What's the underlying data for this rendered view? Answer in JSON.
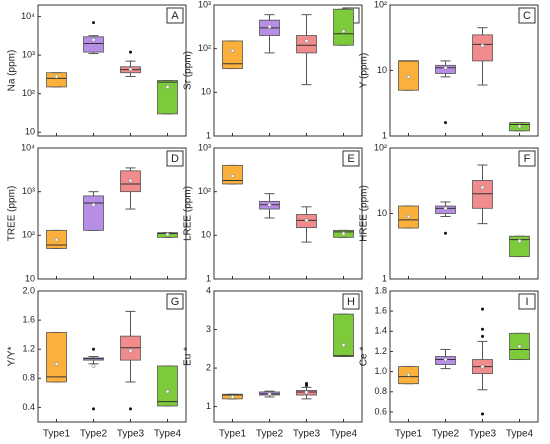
{
  "chart_data": [
    {
      "type": "box",
      "panel": "A",
      "ylabel": "Na (ppm)",
      "log": true,
      "ylim": [
        8,
        20000
      ],
      "yticks": [
        {
          "value": 10,
          "label": "10"
        },
        {
          "value": 100,
          "label": "10²"
        },
        {
          "value": 1000,
          "label": "10³"
        },
        {
          "value": 10000,
          "label": "10⁴"
        }
      ],
      "colors": [
        "#fbb03b",
        "#b68ee6",
        "#f08c8c",
        "#7dcb3a"
      ],
      "boxes": [
        {
          "min": 150,
          "q1": 150,
          "median": 250,
          "q3": 350,
          "max": 350,
          "mean": 280,
          "outliers": []
        },
        {
          "min": 1100,
          "q1": 1200,
          "median": 2000,
          "q3": 3000,
          "max": 3200,
          "mean": 2500,
          "outliers": [
            7000
          ]
        },
        {
          "min": 280,
          "q1": 350,
          "median": 420,
          "q3": 500,
          "max": 700,
          "mean": 430,
          "outliers": [
            1200
          ]
        },
        {
          "min": 30,
          "q1": 30,
          "median": 200,
          "q3": 220,
          "max": 220,
          "mean": 150,
          "outliers": []
        }
      ]
    },
    {
      "type": "box",
      "panel": "B",
      "ylabel": "Sr (ppm)",
      "log": true,
      "ylim": [
        1,
        1000
      ],
      "yticks": [
        {
          "value": 1,
          "label": "1"
        },
        {
          "value": 10,
          "label": "10"
        },
        {
          "value": 100,
          "label": "10²"
        },
        {
          "value": 1000,
          "label": "10³"
        }
      ],
      "colors": [
        "#fbb03b",
        "#b68ee6",
        "#f08c8c",
        "#7dcb3a"
      ],
      "boxes": [
        {
          "min": 35,
          "q1": 35,
          "median": 45,
          "q3": 150,
          "max": 150,
          "mean": 90,
          "outliers": []
        },
        {
          "min": 80,
          "q1": 200,
          "median": 300,
          "q3": 450,
          "max": 600,
          "mean": 320,
          "outliers": []
        },
        {
          "min": 15,
          "q1": 80,
          "median": 120,
          "q3": 200,
          "max": 600,
          "mean": 150,
          "outliers": []
        },
        {
          "min": 120,
          "q1": 120,
          "median": 220,
          "q3": 800,
          "max": 800,
          "mean": 250,
          "outliers": []
        }
      ]
    },
    {
      "type": "box",
      "panel": "C",
      "ylabel": "Y (ppm)",
      "log": true,
      "ylim": [
        1,
        100
      ],
      "yticks": [
        {
          "value": 1,
          "label": "1"
        },
        {
          "value": 10,
          "label": "10"
        },
        {
          "value": 100,
          "label": "10²"
        }
      ],
      "colors": [
        "#fbb03b",
        "#b68ee6",
        "#f08c8c",
        "#7dcb3a"
      ],
      "boxes": [
        {
          "min": 5,
          "q1": 5,
          "median": 14,
          "q3": 14,
          "max": 14,
          "mean": 8,
          "outliers": []
        },
        {
          "min": 8,
          "q1": 9,
          "median": 11,
          "q3": 12,
          "max": 14,
          "mean": 11,
          "outliers": [
            1.6
          ]
        },
        {
          "min": 6,
          "q1": 14,
          "median": 25,
          "q3": 35,
          "max": 45,
          "mean": 24,
          "outliers": []
        },
        {
          "min": 1.2,
          "q1": 1.2,
          "median": 1.5,
          "q3": 1.6,
          "max": 1.6,
          "mean": 1.4,
          "outliers": []
        }
      ]
    },
    {
      "type": "box",
      "panel": "D",
      "ylabel": "TREE (ppm)",
      "log": true,
      "ylim": [
        10,
        10000
      ],
      "yticks": [
        {
          "value": 10,
          "label": "10"
        },
        {
          "value": 100,
          "label": "10²"
        },
        {
          "value": 1000,
          "label": "10³"
        },
        {
          "value": 10000,
          "label": "10⁴"
        }
      ],
      "colors": [
        "#fbb03b",
        "#b68ee6",
        "#f08c8c",
        "#7dcb3a"
      ],
      "boxes": [
        {
          "min": 50,
          "q1": 50,
          "median": 60,
          "q3": 130,
          "max": 130,
          "mean": 80,
          "outliers": []
        },
        {
          "min": 130,
          "q1": 130,
          "median": 550,
          "q3": 800,
          "max": 1000,
          "mean": 500,
          "outliers": []
        },
        {
          "min": 400,
          "q1": 1000,
          "median": 1500,
          "q3": 3000,
          "max": 3500,
          "mean": 1800,
          "outliers": []
        },
        {
          "min": 90,
          "q1": 90,
          "median": 110,
          "q3": 115,
          "max": 115,
          "mean": 105,
          "outliers": []
        }
      ]
    },
    {
      "type": "box",
      "panel": "E",
      "ylabel": "LREE (ppm)",
      "log": true,
      "ylim": [
        1,
        1000
      ],
      "yticks": [
        {
          "value": 1,
          "label": "1"
        },
        {
          "value": 10,
          "label": "10"
        },
        {
          "value": 100,
          "label": "10²"
        },
        {
          "value": 1000,
          "label": "10³"
        }
      ],
      "colors": [
        "#fbb03b",
        "#b68ee6",
        "#f08c8c",
        "#7dcb3a"
      ],
      "boxes": [
        {
          "min": 150,
          "q1": 150,
          "median": 180,
          "q3": 400,
          "max": 400,
          "mean": 230,
          "outliers": []
        },
        {
          "min": 25,
          "q1": 40,
          "median": 50,
          "q3": 60,
          "max": 90,
          "mean": 50,
          "outliers": []
        },
        {
          "min": 7,
          "q1": 15,
          "median": 22,
          "q3": 30,
          "max": 45,
          "mean": 22,
          "outliers": []
        },
        {
          "min": 9,
          "q1": 9,
          "median": 12,
          "q3": 13,
          "max": 13,
          "mean": 11,
          "outliers": []
        }
      ]
    },
    {
      "type": "box",
      "panel": "F",
      "ylabel": "HREE (ppm)",
      "log": true,
      "ylim": [
        1,
        100
      ],
      "yticks": [
        {
          "value": 1,
          "label": "1"
        },
        {
          "value": 10,
          "label": "10"
        },
        {
          "value": 100,
          "label": "10²"
        }
      ],
      "colors": [
        "#fbb03b",
        "#b68ee6",
        "#f08c8c",
        "#7dcb3a"
      ],
      "boxes": [
        {
          "min": 6,
          "q1": 6,
          "median": 8,
          "q3": 13,
          "max": 13,
          "mean": 9,
          "outliers": []
        },
        {
          "min": 9,
          "q1": 10,
          "median": 12,
          "q3": 13,
          "max": 15,
          "mean": 12,
          "outliers": [
            5
          ]
        },
        {
          "min": 7,
          "q1": 12,
          "median": 20,
          "q3": 32,
          "max": 55,
          "mean": 25,
          "outliers": []
        },
        {
          "min": 2.2,
          "q1": 2.2,
          "median": 4,
          "q3": 4.5,
          "max": 4.5,
          "mean": 3.8,
          "outliers": []
        }
      ]
    },
    {
      "type": "box",
      "panel": "G",
      "ylabel": "Y/Y*",
      "log": false,
      "ylim": [
        0.2,
        2.0
      ],
      "yticks": [
        0.4,
        0.8,
        1.2,
        1.6,
        {
          "value": 2,
          "label": "2.0"
        }
      ],
      "colors": [
        "#fbb03b",
        "#b68ee6",
        "#f08c8c",
        "#7dcb3a"
      ],
      "categories": [
        "Type1",
        "Type2",
        "Type3",
        "Type4"
      ],
      "boxes": [
        {
          "min": 0.75,
          "q1": 0.75,
          "median": 0.82,
          "q3": 1.43,
          "max": 1.43,
          "mean": 1.0,
          "outliers": []
        },
        {
          "min": 1.0,
          "q1": 1.05,
          "median": 1.07,
          "q3": 1.08,
          "max": 1.1,
          "mean": 0.97,
          "outliers": [
            0.38,
            1.2
          ]
        },
        {
          "min": 0.75,
          "q1": 1.05,
          "median": 1.22,
          "q3": 1.38,
          "max": 1.72,
          "mean": 1.18,
          "outliers": [
            0.38
          ]
        },
        {
          "min": 0.42,
          "q1": 0.42,
          "median": 0.48,
          "q3": 0.97,
          "max": 0.97,
          "mean": 0.62,
          "outliers": []
        }
      ]
    },
    {
      "type": "box",
      "panel": "H",
      "ylabel": "Eu *",
      "log": false,
      "ylim": [
        0.6,
        4
      ],
      "yticks": [
        1,
        2,
        3,
        4
      ],
      "colors": [
        "#fbb03b",
        "#b68ee6",
        "#f08c8c",
        "#7dcb3a"
      ],
      "categories": [
        "Type1",
        "Type2",
        "Type3",
        "Type4"
      ],
      "boxes": [
        {
          "min": 1.2,
          "q1": 1.2,
          "median": 1.3,
          "q3": 1.32,
          "max": 1.32,
          "mean": 1.25,
          "outliers": []
        },
        {
          "min": 1.25,
          "q1": 1.3,
          "median": 1.33,
          "q3": 1.38,
          "max": 1.4,
          "mean": 1.33,
          "outliers": []
        },
        {
          "min": 1.2,
          "q1": 1.3,
          "median": 1.38,
          "q3": 1.42,
          "max": 1.5,
          "mean": 1.37,
          "outliers": [
            1.55,
            1.6
          ]
        },
        {
          "min": 2.3,
          "q1": 2.3,
          "median": 2.32,
          "q3": 3.4,
          "max": 3.4,
          "mean": 2.6,
          "outliers": []
        }
      ]
    },
    {
      "type": "box",
      "panel": "I",
      "ylabel": "Ce *",
      "log": false,
      "ylim": [
        0.5,
        1.8
      ],
      "yticks": [
        0.6,
        0.8,
        {
          "value": 1,
          "label": "1.0"
        },
        1.2,
        1.4,
        1.6,
        1.8
      ],
      "colors": [
        "#fbb03b",
        "#b68ee6",
        "#f08c8c",
        "#7dcb3a"
      ],
      "categories": [
        "Type1",
        "Type2",
        "Type3",
        "Type4"
      ],
      "boxes": [
        {
          "min": 0.88,
          "q1": 0.88,
          "median": 0.95,
          "q3": 1.05,
          "max": 1.05,
          "mean": 0.97,
          "outliers": []
        },
        {
          "min": 1.03,
          "q1": 1.07,
          "median": 1.12,
          "q3": 1.15,
          "max": 1.22,
          "mean": 1.12,
          "outliers": []
        },
        {
          "min": 0.82,
          "q1": 0.98,
          "median": 1.05,
          "q3": 1.12,
          "max": 1.3,
          "mean": 1.05,
          "outliers": [
            0.58,
            1.35,
            1.42,
            1.62
          ]
        },
        {
          "min": 1.12,
          "q1": 1.12,
          "median": 1.22,
          "q3": 1.38,
          "max": 1.38,
          "mean": 1.25,
          "outliers": []
        }
      ]
    }
  ]
}
